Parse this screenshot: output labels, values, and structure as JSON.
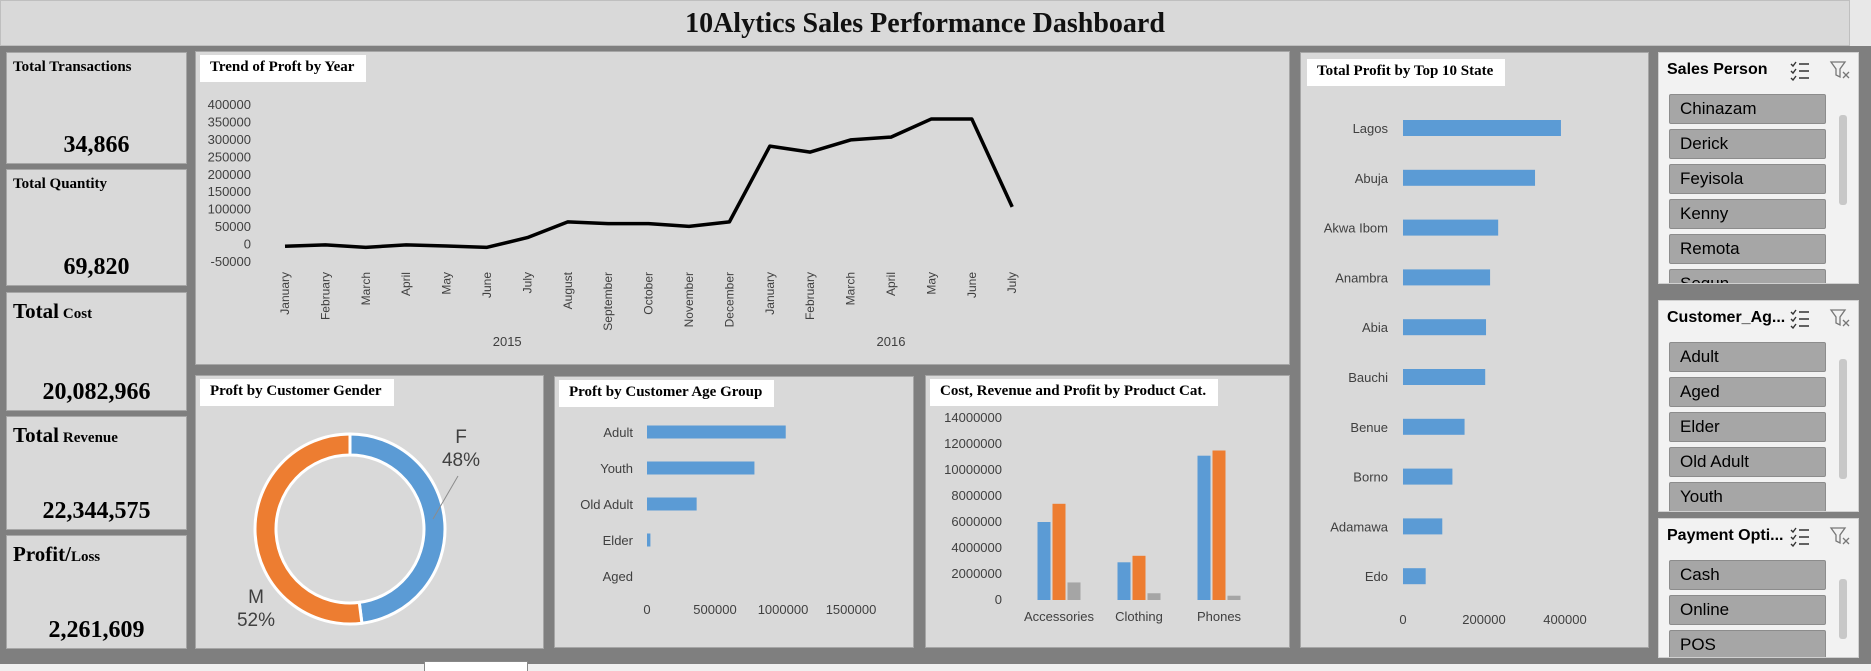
{
  "dashboard": {
    "title": "10Alytics Sales Performance Dashboard"
  },
  "kpis": {
    "transactions": {
      "label": "Total Transactions",
      "value": "34,866"
    },
    "quantity": {
      "label": "Total Quantity",
      "value": "69,820"
    },
    "cost": {
      "label_main": "Total",
      "label_sub": "Cost",
      "value": "20,082,966"
    },
    "revenue": {
      "label_main": "Total",
      "label_sub": "Revenue",
      "value": "22,344,575"
    },
    "profit": {
      "label_main": "Profit/",
      "label_sub": "Loss",
      "value": "2,261,609"
    }
  },
  "trend_panel": {
    "title": "Trend of Proft by Year"
  },
  "gender_panel": {
    "title": "Proft by Customer Gender"
  },
  "age_panel": {
    "title": "Proft by Customer Age Group"
  },
  "product_panel": {
    "title": "Cost, Revenue and Profit by Product Cat."
  },
  "state_panel": {
    "title": "Total Profit by Top 10 State"
  },
  "slicers": {
    "sales_person": {
      "title": "Sales Person",
      "items": [
        "Chinazam",
        "Derick",
        "Feyisola",
        "Kenny",
        "Remota",
        "Segun"
      ]
    },
    "customer_age": {
      "title": "Customer_Ag...",
      "items": [
        "Adult",
        "Aged",
        "Elder",
        "Old Adult",
        "Youth"
      ]
    },
    "payment": {
      "title": "Payment Opti...",
      "items": [
        "Cash",
        "Online",
        "POS"
      ]
    }
  },
  "colors": {
    "series_blue": "#5b9bd5",
    "series_orange": "#ed7d31",
    "series_gray": "#a5a5a5",
    "line": "#000000",
    "panel_bg": "#d9d9d9"
  },
  "chart_data": [
    {
      "type": "line",
      "title": "Trend of Proft by Year",
      "x": [
        "January",
        "February",
        "March",
        "April",
        "May",
        "June",
        "July",
        "August",
        "September",
        "October",
        "November",
        "December",
        "January",
        "February",
        "March",
        "April",
        "May",
        "June",
        "July"
      ],
      "x_groups": [
        {
          "label": "2015",
          "count": 12
        },
        {
          "label": "2016",
          "count": 7
        }
      ],
      "values": [
        -5000,
        -1000,
        -8000,
        -1000,
        -4000,
        -8000,
        20000,
        65000,
        60000,
        60000,
        52000,
        65000,
        282000,
        265000,
        300000,
        308000,
        360000,
        360000,
        108000
      ],
      "yticks": [
        400000,
        350000,
        300000,
        250000,
        200000,
        150000,
        100000,
        50000,
        0,
        -50000
      ],
      "ylim": [
        -50000,
        400000
      ]
    },
    {
      "type": "pie",
      "title": "Proft by Customer Gender",
      "labels": [
        "F",
        "M"
      ],
      "values": [
        48,
        52
      ],
      "value_labels": [
        "48%",
        "52%"
      ]
    },
    {
      "type": "bar",
      "title": "Proft by Customer Age Group",
      "orientation": "horizontal",
      "categories": [
        "Adult",
        "Youth",
        "Old Adult",
        "Elder",
        "Aged"
      ],
      "values": [
        1020000,
        790000,
        365000,
        25000,
        0
      ],
      "xticks": [
        "0",
        "500000",
        "1000000",
        "1500000"
      ],
      "xlim": [
        0,
        1500000
      ]
    },
    {
      "type": "bar",
      "title": "Cost, Revenue and Profit by Product Cat.",
      "categories": [
        "Accessories",
        "Clothing",
        "Phones"
      ],
      "series": [
        {
          "values": [
            6000000,
            2900000,
            11100000
          ]
        },
        {
          "values": [
            7400000,
            3400000,
            11500000
          ]
        },
        {
          "values": [
            1350000,
            520000,
            330000
          ]
        }
      ],
      "yticks": [
        "14000000",
        "12000000",
        "10000000",
        "8000000",
        "6000000",
        "4000000",
        "2000000",
        "0"
      ],
      "ylim": [
        0,
        14000000
      ]
    },
    {
      "type": "bar",
      "title": "Total Profit by Top 10 State",
      "orientation": "horizontal",
      "categories": [
        "Lagos",
        "Abuja",
        "Akwa Ibom",
        "Anambra",
        "Abia",
        "Bauchi",
        "Benue",
        "Borno",
        "Adamawa",
        "Edo"
      ],
      "values": [
        390000,
        326000,
        235000,
        215000,
        205000,
        203000,
        152000,
        122000,
        97000,
        56000
      ],
      "xticks": [
        "0",
        "200000",
        "400000"
      ],
      "xlim": [
        0,
        450000
      ]
    }
  ]
}
